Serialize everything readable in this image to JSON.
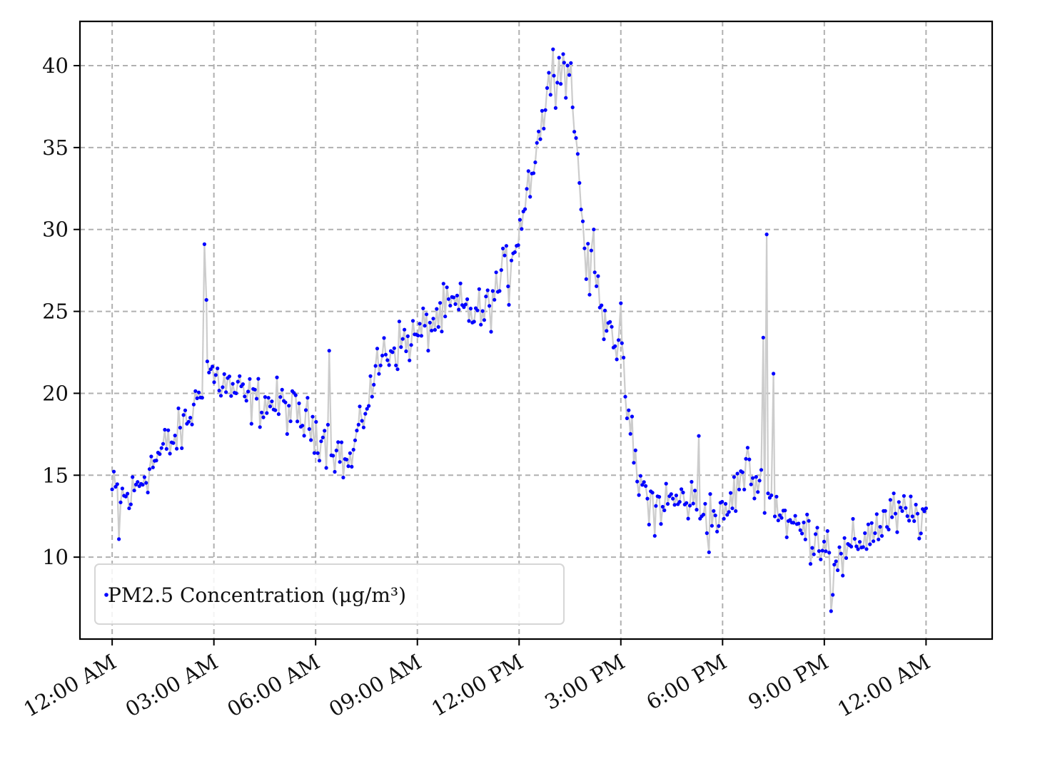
{
  "chart_data": {
    "type": "line",
    "title": "",
    "xlabel": "",
    "ylabel": "",
    "x_unit": "hours since 12:00 AM",
    "xlim": [
      -0.95,
      25.95
    ],
    "ylim": [
      5,
      42.7
    ],
    "x_ticks": [
      0,
      3,
      6,
      9,
      12,
      15,
      18,
      21,
      24
    ],
    "x_tick_labels": [
      "12:00 AM",
      "03:00 AM",
      "06:00 AM",
      "09:00 AM",
      "12:00 PM",
      "3:00 PM",
      "6:00 PM",
      "9:00 PM",
      "12:00 AM"
    ],
    "y_ticks": [
      10,
      15,
      20,
      25,
      30,
      35,
      40
    ],
    "y_tick_labels": [
      "10",
      "15",
      "20",
      "25",
      "30",
      "35",
      "40"
    ],
    "grid": true,
    "legend_position": "lower-left",
    "colors": {
      "marker": "#0000ff",
      "line": "#cccccc",
      "grid": "#b0b0b0"
    },
    "series": [
      {
        "name": "PM2.5 Concentration (μg/m³)",
        "anchors_x": [
          0,
          0.5,
          1,
          1.5,
          2,
          2.5,
          2.75,
          3,
          4,
          5,
          6,
          6.5,
          7,
          7.5,
          8,
          9,
          10,
          11,
          11.5,
          12,
          12.5,
          13,
          13.5,
          14,
          14.5,
          15,
          15.5,
          16,
          17,
          18,
          18.7,
          19,
          19.5,
          20,
          21,
          21.5,
          22,
          23,
          24
        ],
        "anchors_y": [
          14.0,
          13.5,
          15.2,
          16.5,
          17.5,
          19.5,
          22.0,
          21.0,
          19.6,
          19.3,
          17.8,
          16.8,
          15.5,
          19.5,
          22.5,
          23.5,
          25.3,
          24.8,
          27.0,
          30.0,
          35.0,
          39.5,
          39.8,
          27.5,
          26.0,
          22.0,
          14.5,
          13.3,
          13.5,
          12.2,
          15.5,
          14.5,
          13.5,
          12.0,
          11.0,
          9.6,
          11.0,
          12.5,
          12.5
        ],
        "spikes": [
          [
            2.7,
            32.0
          ],
          [
            2.72,
            29.1
          ],
          [
            2.78,
            25.7
          ],
          [
            6.4,
            22.6
          ],
          [
            7.3,
            19.2
          ],
          [
            11.7,
            25.4
          ],
          [
            13.0,
            41.0
          ],
          [
            13.3,
            40.7
          ],
          [
            14.2,
            30.0
          ],
          [
            14.5,
            23.3
          ],
          [
            15.0,
            25.5
          ],
          [
            17.3,
            17.4
          ],
          [
            19.3,
            29.7
          ],
          [
            19.2,
            23.4
          ],
          [
            19.5,
            21.2
          ],
          [
            21.2,
            6.7
          ],
          [
            21.25,
            7.7
          ],
          [
            0.2,
            11.1
          ],
          [
            16.0,
            11.3
          ],
          [
            17.6,
            10.3
          ]
        ],
        "n_points": 480,
        "noise": 0.75
      }
    ]
  }
}
